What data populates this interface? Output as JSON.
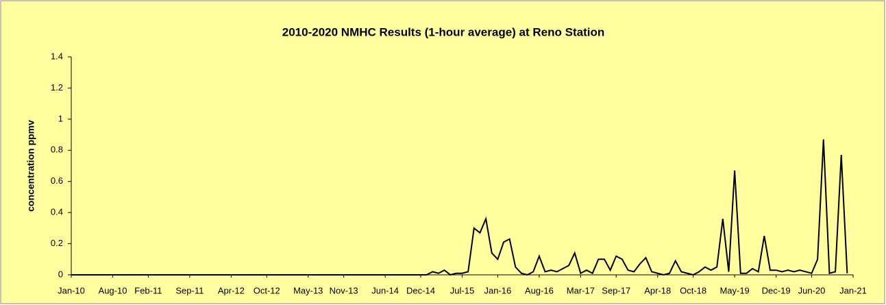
{
  "chart_data": {
    "type": "line",
    "title": "2010-2020 NMHC Results (1-hour average) at Reno Station",
    "y_label": "concentration ppmv",
    "x": [
      "2010-01",
      "2010-02",
      "2010-03",
      "2010-04",
      "2010-05",
      "2010-06",
      "2010-07",
      "2010-08",
      "2010-09",
      "2010-10",
      "2010-11",
      "2010-12",
      "2011-01",
      "2011-02",
      "2011-03",
      "2011-04",
      "2011-05",
      "2011-06",
      "2011-07",
      "2011-08",
      "2011-09",
      "2011-10",
      "2011-11",
      "2011-12",
      "2012-01",
      "2012-02",
      "2012-03",
      "2012-04",
      "2012-05",
      "2012-06",
      "2012-07",
      "2012-08",
      "2012-09",
      "2012-10",
      "2012-11",
      "2012-12",
      "2013-01",
      "2013-02",
      "2013-03",
      "2013-04",
      "2013-05",
      "2013-06",
      "2013-07",
      "2013-08",
      "2013-09",
      "2013-10",
      "2013-11",
      "2013-12",
      "2014-01",
      "2014-02",
      "2014-03",
      "2014-04",
      "2014-05",
      "2014-06",
      "2014-07",
      "2014-08",
      "2014-09",
      "2014-10",
      "2014-11",
      "2014-12",
      "2015-01",
      "2015-02",
      "2015-03",
      "2015-04",
      "2015-05",
      "2015-06",
      "2015-07",
      "2015-08",
      "2015-09",
      "2015-10",
      "2015-11",
      "2015-12",
      "2016-01",
      "2016-02",
      "2016-03",
      "2016-04",
      "2016-05",
      "2016-06",
      "2016-07",
      "2016-08",
      "2016-09",
      "2016-10",
      "2016-11",
      "2016-12",
      "2017-01",
      "2017-02",
      "2017-03",
      "2017-04",
      "2017-05",
      "2017-06",
      "2017-07",
      "2017-08",
      "2017-09",
      "2017-10",
      "2017-11",
      "2017-12",
      "2018-01",
      "2018-02",
      "2018-03",
      "2018-04",
      "2018-05",
      "2018-06",
      "2018-07",
      "2018-08",
      "2018-09",
      "2018-10",
      "2018-11",
      "2018-12",
      "2019-01",
      "2019-02",
      "2019-03",
      "2019-04",
      "2019-05",
      "2019-06",
      "2019-07",
      "2019-08",
      "2019-09",
      "2019-10",
      "2019-11",
      "2019-12",
      "2020-01",
      "2020-02",
      "2020-03",
      "2020-04",
      "2020-05",
      "2020-06",
      "2020-07",
      "2020-08",
      "2020-09",
      "2020-10",
      "2020-11",
      "2020-12"
    ],
    "series": [
      {
        "name": "NMHC",
        "color": "#000000",
        "values": [
          0,
          0,
          0,
          0,
          0,
          0,
          0,
          0,
          0,
          0,
          0,
          0,
          0,
          0,
          0,
          0,
          0,
          0,
          0,
          0,
          0,
          0,
          0,
          0,
          0,
          0,
          0,
          0,
          0,
          0,
          0,
          0,
          0,
          0,
          0,
          0,
          0,
          0,
          0,
          0,
          0,
          0,
          0,
          0,
          0,
          0,
          0,
          0,
          0,
          0,
          0,
          0,
          0,
          0,
          0,
          0,
          0,
          0,
          0,
          0,
          0,
          0.02,
          0.01,
          0.03,
          0,
          0.01,
          0.01,
          0.02,
          0.3,
          0.27,
          0.36,
          0.14,
          0.1,
          0.21,
          0.23,
          0.05,
          0.01,
          0,
          0.02,
          0.12,
          0.02,
          0.03,
          0.02,
          0.04,
          0.06,
          0.14,
          0.01,
          0.03,
          0.01,
          0.1,
          0.1,
          0.03,
          0.12,
          0.1,
          0.03,
          0.02,
          0.07,
          0.11,
          0.02,
          0.01,
          0,
          0.01,
          0.09,
          0.02,
          0.01,
          0,
          0.02,
          0.05,
          0.03,
          0.05,
          0.36,
          0.02,
          0.67,
          0.01,
          0.01,
          0.04,
          0.02,
          0.25,
          0.03,
          0.03,
          0.02,
          0.03,
          0.02,
          0.03,
          0.02,
          0.01,
          0.1,
          0.87,
          0.01,
          0.02,
          0.77,
          0.01
        ]
      }
    ],
    "xlim": [
      "2010-01",
      "2021-01"
    ],
    "xticks": [
      {
        "value": "2010-01",
        "label": "Jan-10"
      },
      {
        "value": "2010-08",
        "label": "Aug-10"
      },
      {
        "value": "2011-02",
        "label": "Feb-11"
      },
      {
        "value": "2011-09",
        "label": "Sep-11"
      },
      {
        "value": "2012-04",
        "label": "Apr-12"
      },
      {
        "value": "2012-10",
        "label": "Oct-12"
      },
      {
        "value": "2013-05",
        "label": "May-13"
      },
      {
        "value": "2013-11",
        "label": "Nov-13"
      },
      {
        "value": "2014-06",
        "label": "Jun-14"
      },
      {
        "value": "2014-12",
        "label": "Dec-14"
      },
      {
        "value": "2015-07",
        "label": "Jul-15"
      },
      {
        "value": "2016-01",
        "label": "Jan-16"
      },
      {
        "value": "2016-08",
        "label": "Aug-16"
      },
      {
        "value": "2017-03",
        "label": "Mar-17"
      },
      {
        "value": "2017-09",
        "label": "Sep-17"
      },
      {
        "value": "2018-04",
        "label": "Apr-18"
      },
      {
        "value": "2018-10",
        "label": "Oct-18"
      },
      {
        "value": "2019-05",
        "label": "May-19"
      },
      {
        "value": "2019-12",
        "label": "Dec-19"
      },
      {
        "value": "2020-06",
        "label": "Jun-20"
      },
      {
        "value": "2021-01",
        "label": "Jan-21"
      }
    ],
    "ylim": [
      0,
      1.4
    ],
    "yticks": [
      0,
      0.2,
      0.4,
      0.6,
      0.8,
      1,
      1.2,
      1.4
    ],
    "grid": false,
    "background": "#ffffa0"
  }
}
